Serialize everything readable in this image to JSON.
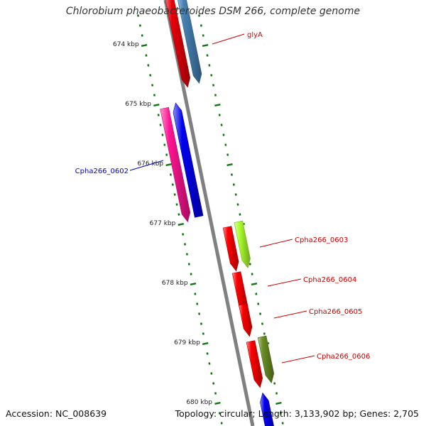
{
  "title": "Chlorobium phaeobacteroides DSM 266, complete genome",
  "footer": {
    "accession": "Accession: NC_008639",
    "topology": "Topology: circular; Length: 3,133,902 bp; Genes: 2,705"
  },
  "colors": {
    "backbone": "#808080",
    "tick": "#117711",
    "tick_label": "#222222",
    "label_leading_strand": "#0000cc",
    "label_lagging_strand": "#cc0000"
  },
  "ticks": [
    "674 kbp",
    "675 kbp",
    "676 kbp",
    "677 kbp",
    "678 kbp",
    "679 kbp",
    "680 kbp"
  ],
  "genes": [
    {
      "label": "glyA",
      "color": "#e8000a",
      "strand": "lagging"
    },
    {
      "label": "",
      "color": "#4682b4",
      "strand": "lagging"
    },
    {
      "label": "Cpha266_0602",
      "color": "#0000ee",
      "strand": "leading"
    },
    {
      "label": "",
      "color": "#ff1493",
      "strand": "leading"
    },
    {
      "label": "Cpha266_0603",
      "color": "#ff0000",
      "strand": "lagging"
    },
    {
      "label": "",
      "color": "#adff2f",
      "strand": "lagging"
    },
    {
      "label": "Cpha266_0604",
      "color": "#ff0000",
      "strand": "lagging"
    },
    {
      "label": "Cpha266_0605",
      "color": "#ff0000",
      "strand": "lagging"
    },
    {
      "label": "Cpha266_0606",
      "color": "#ff0000",
      "strand": "lagging"
    },
    {
      "label": "",
      "color": "#6b8e23",
      "strand": "lagging"
    },
    {
      "label": "",
      "color": "#0000ee",
      "strand": "leading"
    }
  ]
}
